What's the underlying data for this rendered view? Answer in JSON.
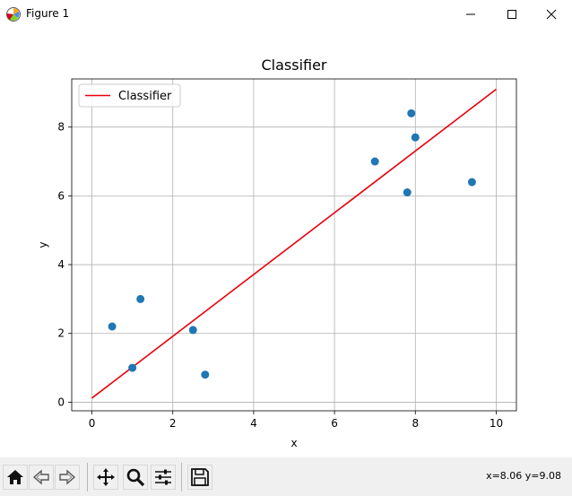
{
  "window": {
    "title": "Figure 1"
  },
  "toolbar": {
    "coord_readout": "x=8.06 y=9.08",
    "buttons": [
      "home-icon",
      "back-arrow-icon",
      "forward-arrow-icon",
      "pan-icon",
      "zoom-icon",
      "configure-subplots-icon",
      "save-icon"
    ]
  },
  "chart_data": {
    "type": "scatter",
    "title": "Classifier",
    "xlabel": "x",
    "ylabel": "y",
    "xlim": [
      -0.5,
      10.5
    ],
    "ylim": [
      -0.25,
      9.4
    ],
    "xticks": [
      "0",
      "2",
      "4",
      "6",
      "8",
      "10"
    ],
    "xtick_values": [
      0,
      2,
      4,
      6,
      8,
      10
    ],
    "yticks": [
      "0",
      "2",
      "4",
      "6",
      "8"
    ],
    "ytick_values": [
      0,
      2,
      4,
      6,
      8
    ],
    "grid": true,
    "legend_position": "top-left",
    "points": {
      "color": "#1f77b4",
      "x": [
        0.5,
        1.0,
        1.2,
        2.5,
        2.8,
        7.0,
        7.8,
        7.9,
        8.0,
        9.4
      ],
      "y": [
        2.2,
        1.0,
        3.0,
        2.1,
        0.8,
        7.0,
        6.1,
        8.4,
        7.7,
        6.4
      ]
    },
    "series": [
      {
        "name": "Classifier",
        "color": "#e8000b",
        "x": [
          0,
          10
        ],
        "y": [
          0.12,
          9.1
        ]
      }
    ]
  }
}
